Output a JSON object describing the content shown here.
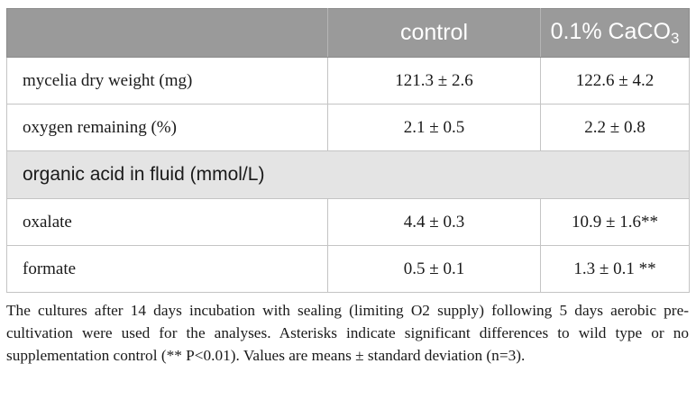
{
  "table": {
    "header": {
      "blank": "",
      "col_control": "control",
      "col_caco3_prefix": "0.1% CaCO",
      "col_caco3_subscript": "3"
    },
    "rows": [
      {
        "label": "mycelia dry weight (mg)",
        "control": "121.3 ± 2.6",
        "caco3": "122.6 ± 4.2"
      },
      {
        "label": "oxygen remaining (%)",
        "control": "2.1 ± 0.5",
        "caco3": "2.2 ± 0.8"
      }
    ],
    "section": {
      "label": "organic acid in fluid (mmol/L)"
    },
    "section_rows": [
      {
        "label": "oxalate",
        "control": "4.4 ± 0.3",
        "caco3": "10.9 ± 1.6**"
      },
      {
        "label": "formate",
        "control": "0.5 ± 0.1",
        "caco3": "1.3 ± 0.1 **"
      }
    ]
  },
  "footnote": "The cultures after 14 days incubation with sealing (limiting O2 supply) following 5 days aerobic pre-cultivation were used for the analyses. Asterisks indicate significant differences to wild type or no supplementation control (** P<0.01). Values are means ± standard deviation (n=3)."
}
